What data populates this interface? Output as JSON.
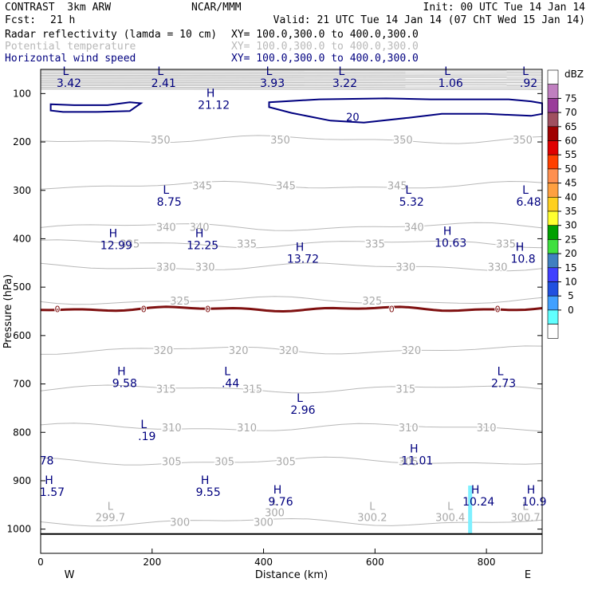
{
  "header": {
    "title_left": "CONTRAST  3km ARW",
    "title_center": "NCAR/MMM",
    "init": "Init: 00 UTC Tue 14 Jan 14",
    "fcst_label": "Fcst:",
    "fcst_value": "21 h",
    "valid": "Valid: 21 UTC Tue 14 Jan 14 (07 ChT Wed 15 Jan 14)",
    "fields": [
      {
        "name": "Radar reflectivity (lamda = 10 cm)",
        "xy": "XY= 100.0,300.0 to 400.0,300.0",
        "color": "#000000"
      },
      {
        "name": "Potential temperature",
        "xy": "XY= 100.0,300.0 to 400.0,300.0",
        "color": "#b8b8b8"
      },
      {
        "name": "Horizontal wind speed",
        "xy": "XY= 100.0,300.0 to 400.0,300.0",
        "color": "#00007f"
      }
    ]
  },
  "chart_data": {
    "type": "cross-section contour",
    "xlabel": "Distance (km)",
    "ylabel": "Pressure (hPa)",
    "xlim": [
      0,
      900
    ],
    "ylim": [
      1050,
      50
    ],
    "x_ticks": [
      0,
      200,
      400,
      600,
      800
    ],
    "y_ticks": [
      100,
      200,
      300,
      400,
      500,
      600,
      700,
      800,
      900,
      1000
    ],
    "x_end_labels": {
      "left": "W",
      "right": "E"
    },
    "theta_contours": [
      {
        "value": 350,
        "p": 195,
        "labels": [
          {
            "x": 215,
            "text": "350"
          },
          {
            "x": 430,
            "text": "350"
          },
          {
            "x": 650,
            "text": "350"
          },
          {
            "x": 865,
            "text": "350"
          }
        ]
      },
      {
        "value": 345,
        "p": 290,
        "labels": [
          {
            "x": 290,
            "text": "345"
          },
          {
            "x": 440,
            "text": "345"
          },
          {
            "x": 640,
            "text": "345"
          }
        ]
      },
      {
        "value": 340,
        "p": 375,
        "labels": [
          {
            "x": 225,
            "text": "340"
          },
          {
            "x": 285,
            "text": "340"
          },
          {
            "x": 670,
            "text": "340"
          }
        ]
      },
      {
        "value": 335,
        "p": 410,
        "labels": [
          {
            "x": 160,
            "text": "335"
          },
          {
            "x": 370,
            "text": "335"
          },
          {
            "x": 600,
            "text": "335"
          },
          {
            "x": 835,
            "text": "335"
          }
        ]
      },
      {
        "value": 330,
        "p": 458,
        "labels": [
          {
            "x": 225,
            "text": "330"
          },
          {
            "x": 295,
            "text": "330"
          },
          {
            "x": 655,
            "text": "330"
          },
          {
            "x": 820,
            "text": "330"
          }
        ]
      },
      {
        "value": 325,
        "p": 528,
        "labels": [
          {
            "x": 250,
            "text": "325"
          },
          {
            "x": 595,
            "text": "325"
          }
        ]
      },
      {
        "value": 320,
        "p": 630,
        "labels": [
          {
            "x": 220,
            "text": "320"
          },
          {
            "x": 355,
            "text": "320"
          },
          {
            "x": 445,
            "text": "320"
          },
          {
            "x": 665,
            "text": "320"
          }
        ]
      },
      {
        "value": 315,
        "p": 710,
        "labels": [
          {
            "x": 225,
            "text": "315"
          },
          {
            "x": 380,
            "text": "315"
          },
          {
            "x": 655,
            "text": "315"
          }
        ]
      },
      {
        "value": 310,
        "p": 790,
        "labels": [
          {
            "x": 235,
            "text": "310"
          },
          {
            "x": 370,
            "text": "310"
          },
          {
            "x": 660,
            "text": "310"
          },
          {
            "x": 800,
            "text": "310"
          }
        ]
      },
      {
        "value": 305,
        "p": 860,
        "labels": [
          {
            "x": 235,
            "text": "305"
          },
          {
            "x": 330,
            "text": "305"
          },
          {
            "x": 440,
            "text": "305"
          },
          {
            "x": 660,
            "text": "305"
          }
        ]
      },
      {
        "value": 300,
        "p": 985,
        "labels": [
          {
            "x": 250,
            "text": "300"
          },
          {
            "x": 400,
            "text": "300"
          }
        ]
      }
    ],
    "theta_extrema": [
      {
        "x": 105,
        "p": 960,
        "sym": "L",
        "val": "299.7"
      },
      {
        "x": 400,
        "p": 950,
        "sym": "L",
        "val": "300"
      },
      {
        "x": 575,
        "p": 960,
        "sym": "L",
        "val": "300.2"
      },
      {
        "x": 715,
        "p": 960,
        "sym": "L",
        "val": "300.4"
      },
      {
        "x": 850,
        "p": 960,
        "sym": "L",
        "val": "300.7"
      }
    ],
    "wind_extrema": [
      {
        "x": 45,
        "p": 55,
        "sym": "L",
        "val": "3.42"
      },
      {
        "x": 215,
        "p": 55,
        "sym": "L",
        "val": "2.41"
      },
      {
        "x": 305,
        "p": 100,
        "sym": "H",
        "val": "21.12"
      },
      {
        "x": 410,
        "p": 55,
        "sym": "L",
        "val": "3.93"
      },
      {
        "x": 540,
        "p": 55,
        "sym": "L",
        "val": "3.22"
      },
      {
        "x": 730,
        "p": 55,
        "sym": "L",
        "val": "1.06"
      },
      {
        "x": 870,
        "p": 55,
        "sym": "L",
        "val": ".92"
      },
      {
        "x": 225,
        "p": 300,
        "sym": "L",
        "val": "8.75"
      },
      {
        "x": 660,
        "p": 300,
        "sym": "L",
        "val": "5.32"
      },
      {
        "x": 870,
        "p": 300,
        "sym": "L",
        "val": "6.48"
      },
      {
        "x": 130,
        "p": 390,
        "sym": "H",
        "val": "12.99"
      },
      {
        "x": 285,
        "p": 390,
        "sym": "H",
        "val": "12.25"
      },
      {
        "x": 465,
        "p": 418,
        "sym": "H",
        "val": "13.72"
      },
      {
        "x": 730,
        "p": 385,
        "sym": "H",
        "val": "10.63"
      },
      {
        "x": 860,
        "p": 418,
        "sym": "H",
        "val": "10.8"
      },
      {
        "x": 145,
        "p": 675,
        "sym": "H",
        "val": "9.58"
      },
      {
        "x": 335,
        "p": 675,
        "sym": "L",
        "val": ".44"
      },
      {
        "x": 465,
        "p": 730,
        "sym": "L",
        "val": "2.96"
      },
      {
        "x": 825,
        "p": 675,
        "sym": "L",
        "val": "2.73"
      },
      {
        "x": 185,
        "p": 785,
        "sym": "L",
        "val": ".19"
      },
      {
        "x": 5,
        "p": 835,
        "sym": "",
        "val": "78"
      },
      {
        "x": 670,
        "p": 835,
        "sym": "H",
        "val": "11.01"
      },
      {
        "x": 15,
        "p": 900,
        "sym": "H",
        "val": "1.57"
      },
      {
        "x": 295,
        "p": 900,
        "sym": "H",
        "val": "9.55"
      },
      {
        "x": 425,
        "p": 920,
        "sym": "H",
        "val": "9.76"
      },
      {
        "x": 780,
        "p": 920,
        "sym": "H",
        "val": "10.24"
      },
      {
        "x": 880,
        "p": 920,
        "sym": "H",
        "val": "10.9"
      }
    ],
    "wind_contour": {
      "value": 20,
      "label": "20"
    },
    "reflectivity_contour": {
      "value": 0,
      "label": "0",
      "p": 545,
      "color": "#7f1010"
    },
    "colorbar": {
      "unit": "dBZ",
      "levels": [
        "75",
        "70",
        "65",
        "60",
        "55",
        "50",
        "45",
        "40",
        "35",
        "30",
        "25",
        "20",
        "15",
        "10",
        "5",
        "0"
      ],
      "colors": [
        "#ffffff",
        "#c080c0",
        "#9a3d9a",
        "#a05060",
        "#a00000",
        "#e00000",
        "#ff4000",
        "#ff9050",
        "#ffa040",
        "#ffd020",
        "#ffff30",
        "#00a000",
        "#40e040",
        "#4080c0",
        "#4040ff",
        "#2050e0",
        "#40a0ff",
        "#60ffff",
        "#ffffff"
      ]
    },
    "ground_level_hPa": 1010,
    "radar_echo": {
      "x": 770,
      "p_top": 910,
      "p_bottom": 1010,
      "color": "#7ff0ff"
    }
  }
}
